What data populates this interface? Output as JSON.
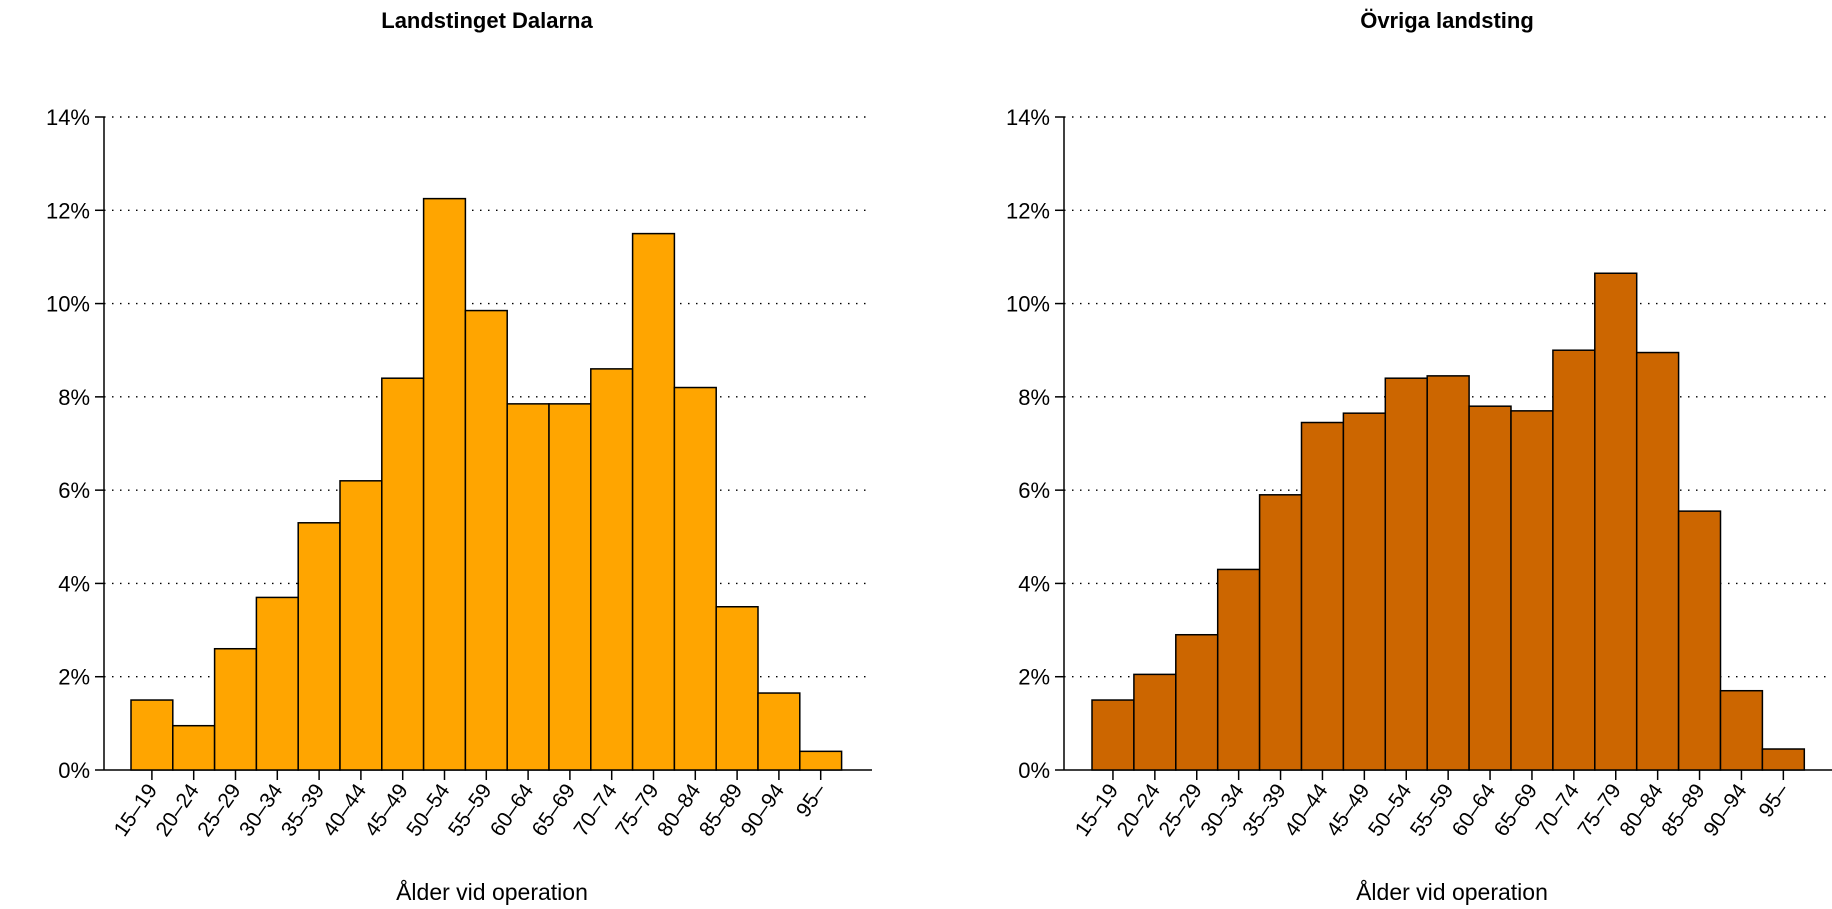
{
  "chart_data": [
    {
      "type": "bar",
      "title": "Landstinget Dalarna",
      "xlabel": "Ålder vid operation",
      "ylabel": "",
      "ylim": [
        0,
        14
      ],
      "y_ticks": [
        0,
        2,
        4,
        6,
        8,
        10,
        12,
        14
      ],
      "y_tick_labels": [
        "0%",
        "2%",
        "4%",
        "6%",
        "8%",
        "10%",
        "12%",
        "14%"
      ],
      "grid": "horizontal dotted",
      "bar_color": "#FFA500",
      "categories": [
        "15–19",
        "20–24",
        "25–29",
        "30–34",
        "35–39",
        "40–44",
        "45–49",
        "50–54",
        "55–59",
        "60–64",
        "65–69",
        "70–74",
        "75–79",
        "80–84",
        "85–89",
        "90–94",
        "95–"
      ],
      "values": [
        1.5,
        0.95,
        2.6,
        3.7,
        5.3,
        6.2,
        8.4,
        12.25,
        9.85,
        7.85,
        7.85,
        8.6,
        11.5,
        8.2,
        3.5,
        1.65,
        0.4
      ]
    },
    {
      "type": "bar",
      "title": "Övriga landsting",
      "xlabel": "Ålder vid operation",
      "ylabel": "",
      "ylim": [
        0,
        14
      ],
      "y_ticks": [
        0,
        2,
        4,
        6,
        8,
        10,
        12,
        14
      ],
      "y_tick_labels": [
        "0%",
        "2%",
        "4%",
        "6%",
        "8%",
        "10%",
        "12%",
        "14%"
      ],
      "grid": "horizontal dotted",
      "bar_color": "#CC6600",
      "categories": [
        "15–19",
        "20–24",
        "25–29",
        "30–34",
        "35–39",
        "40–44",
        "45–49",
        "50–54",
        "55–59",
        "60–64",
        "65–69",
        "70–74",
        "75–79",
        "80–84",
        "85–89",
        "90–94",
        "95–"
      ],
      "values": [
        1.5,
        2.05,
        2.9,
        4.3,
        5.9,
        7.45,
        7.65,
        8.4,
        8.45,
        7.8,
        7.7,
        9.0,
        10.65,
        8.95,
        5.55,
        1.7,
        0.45
      ]
    }
  ]
}
